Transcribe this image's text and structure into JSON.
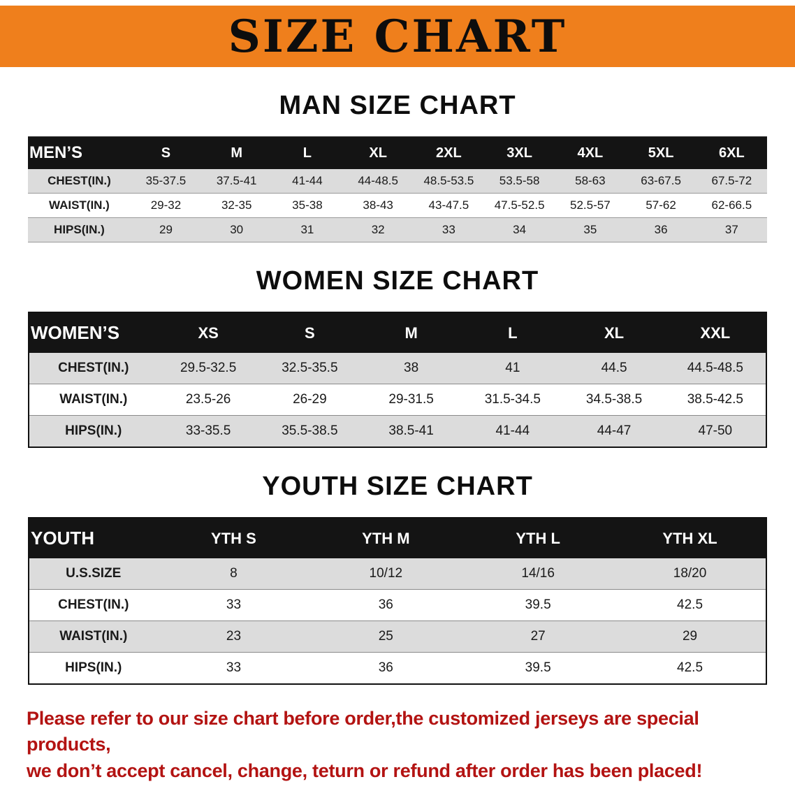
{
  "banner": {
    "title": "SIZE CHART",
    "bg_color": "#EF7F1C"
  },
  "sections": [
    {
      "id": "men",
      "heading": "MAN SIZE CHART",
      "table": {
        "header": [
          "MEN’S",
          "S",
          "M",
          "L",
          "XL",
          "2XL",
          "3XL",
          "4XL",
          "5XL",
          "6XL"
        ],
        "rows": [
          [
            "CHEST(IN.)",
            "35-37.5",
            "37.5-41",
            "41-44",
            "44-48.5",
            "48.5-53.5",
            "53.5-58",
            "58-63",
            "63-67.5",
            "67.5-72"
          ],
          [
            "WAIST(IN.)",
            "29-32",
            "32-35",
            "35-38",
            "38-43",
            "43-47.5",
            "47.5-52.5",
            "52.5-57",
            "57-62",
            "62-66.5"
          ],
          [
            "HIPS(IN.)",
            "29",
            "30",
            "31",
            "32",
            "33",
            "34",
            "35",
            "36",
            "37"
          ]
        ]
      }
    },
    {
      "id": "women",
      "heading": "WOMEN SIZE CHART",
      "table": {
        "header": [
          "WOMEN’S",
          "XS",
          "S",
          "M",
          "L",
          "XL",
          "XXL"
        ],
        "rows": [
          [
            "CHEST(IN.)",
            "29.5-32.5",
            "32.5-35.5",
            "38",
            "41",
            "44.5",
            "44.5-48.5"
          ],
          [
            "WAIST(IN.)",
            "23.5-26",
            "26-29",
            "29-31.5",
            "31.5-34.5",
            "34.5-38.5",
            "38.5-42.5"
          ],
          [
            "HIPS(IN.)",
            "33-35.5",
            "35.5-38.5",
            "38.5-41",
            "41-44",
            "44-47",
            "47-50"
          ]
        ]
      }
    },
    {
      "id": "youth",
      "heading": "YOUTH SIZE CHART",
      "table": {
        "header": [
          "YOUTH",
          "YTH S",
          "YTH M",
          "YTH L",
          "YTH XL"
        ],
        "rows": [
          [
            "U.S.SIZE",
            "8",
            "10/12",
            "14/16",
            "18/20"
          ],
          [
            "CHEST(IN.)",
            "33",
            "36",
            "39.5",
            "42.5"
          ],
          [
            "WAIST(IN.)",
            "23",
            "25",
            "27",
            "29"
          ],
          [
            "HIPS(IN.)",
            "33",
            "36",
            "39.5",
            "42.5"
          ]
        ]
      }
    }
  ],
  "disclaimer": {
    "color": "#B31312",
    "line1": "Please refer to our size chart before order,the customized jerseys are special products,",
    "line2": "we don’t accept cancel, change, teturn or refund after order has been placed!"
  }
}
